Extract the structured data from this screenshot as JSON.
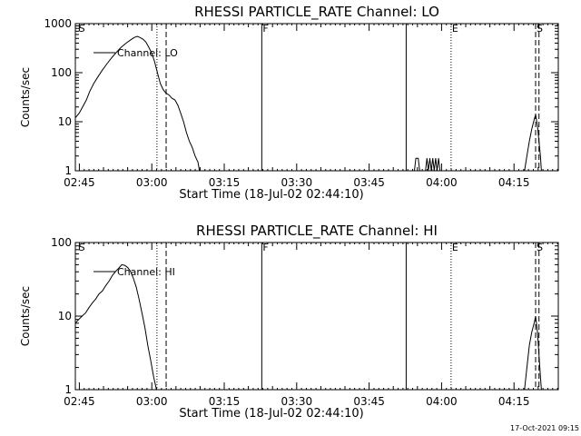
{
  "footer": {
    "timestamp": "17-Oct-2021 09:15"
  },
  "chart_data": [
    {
      "type": "line",
      "title": "RHESSI PARTICLE_RATE Channel: LO",
      "xlabel": "Start Time (18-Jul-02 02:44:10)",
      "ylabel": "Counts/sec",
      "xlim_minutes": [
        0,
        100
      ],
      "ylim": [
        1,
        1000
      ],
      "yscale": "log",
      "x_ticks": [
        {
          "label": "02:45",
          "t": 0.83
        },
        {
          "label": "03:00",
          "t": 15.83
        },
        {
          "label": "03:15",
          "t": 30.83
        },
        {
          "label": "03:30",
          "t": 45.83
        },
        {
          "label": "03:45",
          "t": 60.83
        },
        {
          "label": "04:00",
          "t": 75.83
        },
        {
          "label": "04:15",
          "t": 90.83
        }
      ],
      "y_ticks": [
        {
          "label": "1",
          "v": 1
        },
        {
          "label": "10",
          "v": 10
        },
        {
          "label": "100",
          "v": 100
        },
        {
          "label": "1000",
          "v": 1000
        }
      ],
      "legend": {
        "label": "Channel: LO",
        "position": "top-left"
      },
      "markers": [
        {
          "label": "S",
          "t": 0.5,
          "style": "none"
        },
        {
          "label": "",
          "t": 16.9,
          "style": "dotted"
        },
        {
          "label": "",
          "t": 18.8,
          "style": "dashed"
        },
        {
          "label": "F",
          "t": 38.6,
          "style": "solid"
        },
        {
          "label": "",
          "t": 68.5,
          "style": "solid"
        },
        {
          "label": "E",
          "t": 77.8,
          "style": "dotted"
        },
        {
          "label": "S",
          "t": 95.3,
          "style": "dashed"
        },
        {
          "label": "",
          "t": 96.0,
          "style": "dashed"
        }
      ],
      "series": [
        {
          "name": "Channel: LO",
          "segments": [
            [
              [
                0.0,
                12
              ],
              [
                0.8,
                15
              ],
              [
                1.5,
                20
              ],
              [
                2.3,
                28
              ],
              [
                3.0,
                42
              ],
              [
                3.8,
                60
              ],
              [
                4.6,
                80
              ],
              [
                5.5,
                110
              ],
              [
                6.5,
                150
              ],
              [
                7.5,
                200
              ],
              [
                8.5,
                260
              ],
              [
                9.5,
                330
              ],
              [
                10.5,
                400
              ],
              [
                11.5,
                470
              ],
              [
                12.2,
                520
              ],
              [
                12.8,
                550
              ],
              [
                13.4,
                520
              ],
              [
                14.0,
                480
              ],
              [
                14.6,
                420
              ],
              [
                15.2,
                330
              ],
              [
                15.8,
                250
              ],
              [
                16.4,
                170
              ],
              [
                17.0,
                100
              ],
              [
                17.6,
                60
              ],
              [
                18.2,
                45
              ],
              [
                18.8,
                38
              ],
              [
                19.4,
                35
              ],
              [
                20.0,
                30
              ],
              [
                20.6,
                28
              ],
              [
                21.2,
                22
              ],
              [
                21.8,
                15
              ],
              [
                22.4,
                10
              ],
              [
                23.0,
                6
              ],
              [
                23.6,
                4
              ],
              [
                24.2,
                3
              ],
              [
                24.8,
                2
              ],
              [
                25.4,
                1.5
              ],
              [
                25.7,
                1
              ]
            ],
            [
              [
                70.2,
                1
              ],
              [
                70.5,
                1.8
              ],
              [
                71.0,
                1.8
              ],
              [
                71.3,
                1
              ],
              [
                72.5,
                1
              ],
              [
                72.8,
                1.8
              ],
              [
                73.1,
                1
              ],
              [
                73.4,
                1.8
              ],
              [
                73.7,
                1
              ],
              [
                74.0,
                1.8
              ],
              [
                74.3,
                1
              ],
              [
                74.6,
                1.8
              ],
              [
                74.9,
                1
              ],
              [
                75.2,
                1.8
              ],
              [
                75.5,
                1
              ]
            ],
            [
              [
                93.0,
                1
              ],
              [
                93.5,
                2
              ],
              [
                94.0,
                4
              ],
              [
                94.5,
                7
              ],
              [
                95.0,
                11
              ],
              [
                95.3,
                14
              ],
              [
                95.7,
                8
              ],
              [
                96.0,
                4
              ],
              [
                96.3,
                2
              ],
              [
                96.5,
                1
              ]
            ]
          ]
        }
      ]
    },
    {
      "type": "line",
      "title": "RHESSI PARTICLE_RATE Channel: HI",
      "xlabel": "Start Time (18-Jul-02 02:44:10)",
      "ylabel": "Counts/sec",
      "xlim_minutes": [
        0,
        100
      ],
      "ylim": [
        1,
        100
      ],
      "yscale": "log",
      "x_ticks": [
        {
          "label": "02:45",
          "t": 0.83
        },
        {
          "label": "03:00",
          "t": 15.83
        },
        {
          "label": "03:15",
          "t": 30.83
        },
        {
          "label": "03:30",
          "t": 45.83
        },
        {
          "label": "03:45",
          "t": 60.83
        },
        {
          "label": "04:00",
          "t": 75.83
        },
        {
          "label": "04:15",
          "t": 90.83
        }
      ],
      "y_ticks": [
        {
          "label": "1",
          "v": 1
        },
        {
          "label": "10",
          "v": 10
        },
        {
          "label": "100",
          "v": 100
        }
      ],
      "legend": {
        "label": "Channel: HI",
        "position": "top-left"
      },
      "markers": [
        {
          "label": "S",
          "t": 0.5,
          "style": "none"
        },
        {
          "label": "",
          "t": 16.9,
          "style": "dotted"
        },
        {
          "label": "",
          "t": 18.8,
          "style": "dashed"
        },
        {
          "label": "F",
          "t": 38.6,
          "style": "solid"
        },
        {
          "label": "",
          "t": 68.5,
          "style": "solid"
        },
        {
          "label": "E",
          "t": 77.8,
          "style": "dotted"
        },
        {
          "label": "S",
          "t": 95.3,
          "style": "dashed"
        },
        {
          "label": "",
          "t": 96.0,
          "style": "dashed"
        }
      ],
      "series": [
        {
          "name": "Channel: HI",
          "segments": [
            [
              [
                0.0,
                8
              ],
              [
                0.7,
                9
              ],
              [
                1.4,
                10
              ],
              [
                2.1,
                11
              ],
              [
                2.8,
                13
              ],
              [
                3.5,
                15
              ],
              [
                4.2,
                17
              ],
              [
                4.9,
                20
              ],
              [
                5.6,
                22
              ],
              [
                6.3,
                26
              ],
              [
                7.0,
                30
              ],
              [
                7.7,
                36
              ],
              [
                8.4,
                41
              ],
              [
                9.0,
                45
              ],
              [
                9.6,
                50
              ],
              [
                10.2,
                49
              ],
              [
                10.8,
                46
              ],
              [
                11.4,
                41
              ],
              [
                12.0,
                33
              ],
              [
                12.6,
                25
              ],
              [
                13.2,
                17
              ],
              [
                13.8,
                11
              ],
              [
                14.4,
                7
              ],
              [
                15.0,
                4
              ],
              [
                15.6,
                2.5
              ],
              [
                16.2,
                1.5
              ],
              [
                16.8,
                1
              ]
            ],
            [
              [
                93.0,
                1
              ],
              [
                93.5,
                2
              ],
              [
                94.0,
                4
              ],
              [
                94.5,
                6
              ],
              [
                95.0,
                8
              ],
              [
                95.3,
                10
              ],
              [
                95.7,
                6
              ],
              [
                96.0,
                3
              ],
              [
                96.3,
                1.5
              ],
              [
                96.5,
                1
              ]
            ]
          ]
        }
      ]
    }
  ]
}
